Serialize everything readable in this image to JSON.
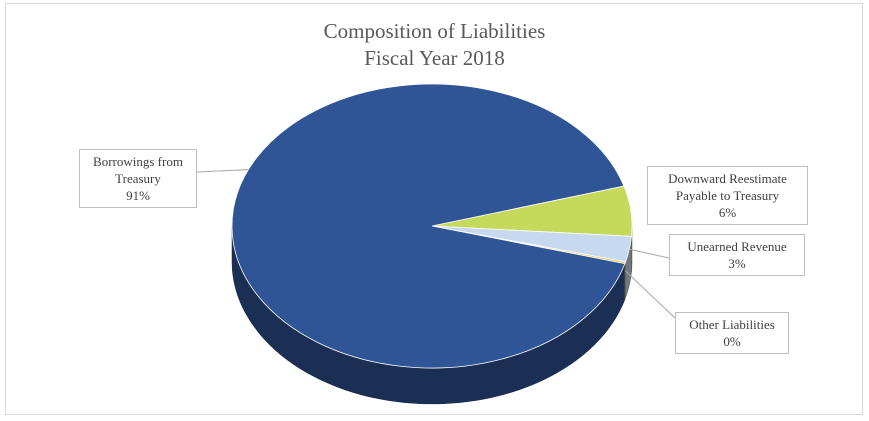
{
  "chart_data": {
    "type": "pie",
    "title_lines": [
      "Composition of Liabilities",
      "Fiscal Year 2018"
    ],
    "slices": [
      {
        "label_lines": [
          "Borrowings from",
          "Treasury"
        ],
        "pct_label": "91%",
        "value": 91.2,
        "color": "#2f5597"
      },
      {
        "label_lines": [
          "Downward Reestimate",
          "Payable to Treasury"
        ],
        "pct_label": "6%",
        "value": 5.7,
        "color": "#c5d95a"
      },
      {
        "label_lines": [
          "Unearned Revenue"
        ],
        "pct_label": "3%",
        "value": 2.9,
        "color": "#c6d9f1"
      },
      {
        "label_lines": [
          "Other Liabilities"
        ],
        "pct_label": "0%",
        "value": 0.2,
        "color": "#f0c040"
      }
    ],
    "style": "3d-tilted",
    "legend": "none"
  }
}
